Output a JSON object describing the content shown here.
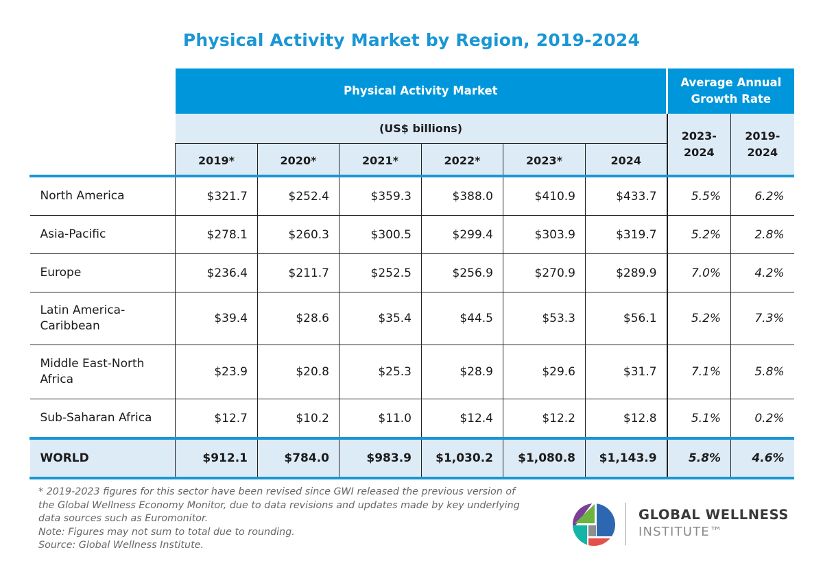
{
  "title": "Physical Activity Market by Region, 2019-2024",
  "chart_data": {
    "type": "table",
    "title": "Physical Activity Market by Region, 2019-2024",
    "group_header": "Physical Activity Market",
    "units": "(US$ billions)",
    "growth_header": "Average Annual Growth Rate",
    "columns": [
      "2019*",
      "2020*",
      "2021*",
      "2022*",
      "2023*",
      "2024"
    ],
    "growth_columns": [
      "2023-2024",
      "2019-2024"
    ],
    "rows": [
      {
        "region": "North America",
        "values": [
          "$321.7",
          "$252.4",
          "$359.3",
          "$388.0",
          "$410.9",
          "$433.7"
        ],
        "growth": [
          "5.5%",
          "6.2%"
        ]
      },
      {
        "region": "Asia-Pacific",
        "values": [
          "$278.1",
          "$260.3",
          "$300.5",
          "$299.4",
          "$303.9",
          "$319.7"
        ],
        "growth": [
          "5.2%",
          "2.8%"
        ]
      },
      {
        "region": "Europe",
        "values": [
          "$236.4",
          "$211.7",
          "$252.5",
          "$256.9",
          "$270.9",
          "$289.9"
        ],
        "growth": [
          "7.0%",
          "4.2%"
        ]
      },
      {
        "region": "Latin America-Caribbean",
        "values": [
          "$39.4",
          "$28.6",
          "$35.4",
          "$44.5",
          "$53.3",
          "$56.1"
        ],
        "growth": [
          "5.2%",
          "7.3%"
        ]
      },
      {
        "region": "Middle East-North Africa",
        "values": [
          "$23.9",
          "$20.8",
          "$25.3",
          "$28.9",
          "$29.6",
          "$31.7"
        ],
        "growth": [
          "7.1%",
          "5.8%"
        ]
      },
      {
        "region": "Sub-Saharan Africa",
        "values": [
          "$12.7",
          "$10.2",
          "$11.0",
          "$12.4",
          "$12.2",
          "$12.8"
        ],
        "growth": [
          "5.1%",
          "0.2%"
        ]
      }
    ],
    "total": {
      "region": "WORLD",
      "values": [
        "$912.1",
        "$784.0",
        "$983.9",
        "$1,030.2",
        "$1,080.8",
        "$1,143.9"
      ],
      "growth": [
        "5.8%",
        "4.6%"
      ]
    }
  },
  "notes": [
    "* 2019-2023 figures for this sector have been revised since GWI released the previous version of the Global Wellness Economy Monitor, due to data revisions and updates made by key underlying data sources such as Euromonitor.",
    "Note: Figures may not sum to total due to rounding.",
    "Source: Global Wellness Institute."
  ],
  "logo": {
    "name": "GLOBAL WELLNESS",
    "sub": "INSTITUTE™"
  },
  "colors": {
    "header": "#0096db",
    "subheader": "#ddebf7",
    "title": "#1a96d4",
    "rule": "#1a96d4"
  }
}
